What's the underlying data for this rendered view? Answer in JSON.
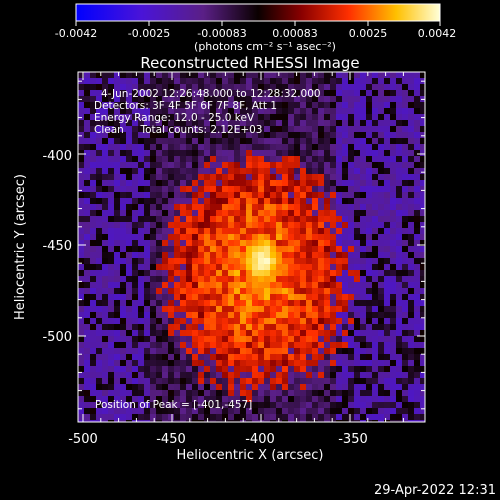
{
  "colorbar": {
    "ticks": [
      "-0.0042",
      "-0.0025",
      "-0.00083",
      "0.00083",
      "0.0025",
      "0.0042"
    ],
    "unit_label": "(photons cm⁻² s⁻¹ asec⁻²)"
  },
  "plot": {
    "title": "Reconstructed RHESSI Image",
    "info_lines": [
      "4-Jun-2002 12:26:48.000 to 12:28:32.000",
      "Detectors: 3F 4F 5F 6F 7F 8F, Att 1",
      "Energy Range: 12.0 - 25.0 keV",
      "Clean     Total counts: 2.12E+03"
    ],
    "peak_text": "Position of Peak = [-401,-457]",
    "xlabel": "Heliocentric X (arcsec)",
    "ylabel": "Heliocentric Y (arcsec)",
    "x_ticks": [
      "-500",
      "-450",
      "-400",
      "-350"
    ],
    "y_ticks": [
      "-400",
      "-450",
      "-500"
    ],
    "peak_x": -401,
    "peak_y": -457
  },
  "footer": {
    "timestamp": "29-Apr-2022 12:31"
  },
  "colors": {
    "background": "#000000",
    "foreground": "#ffffff"
  }
}
